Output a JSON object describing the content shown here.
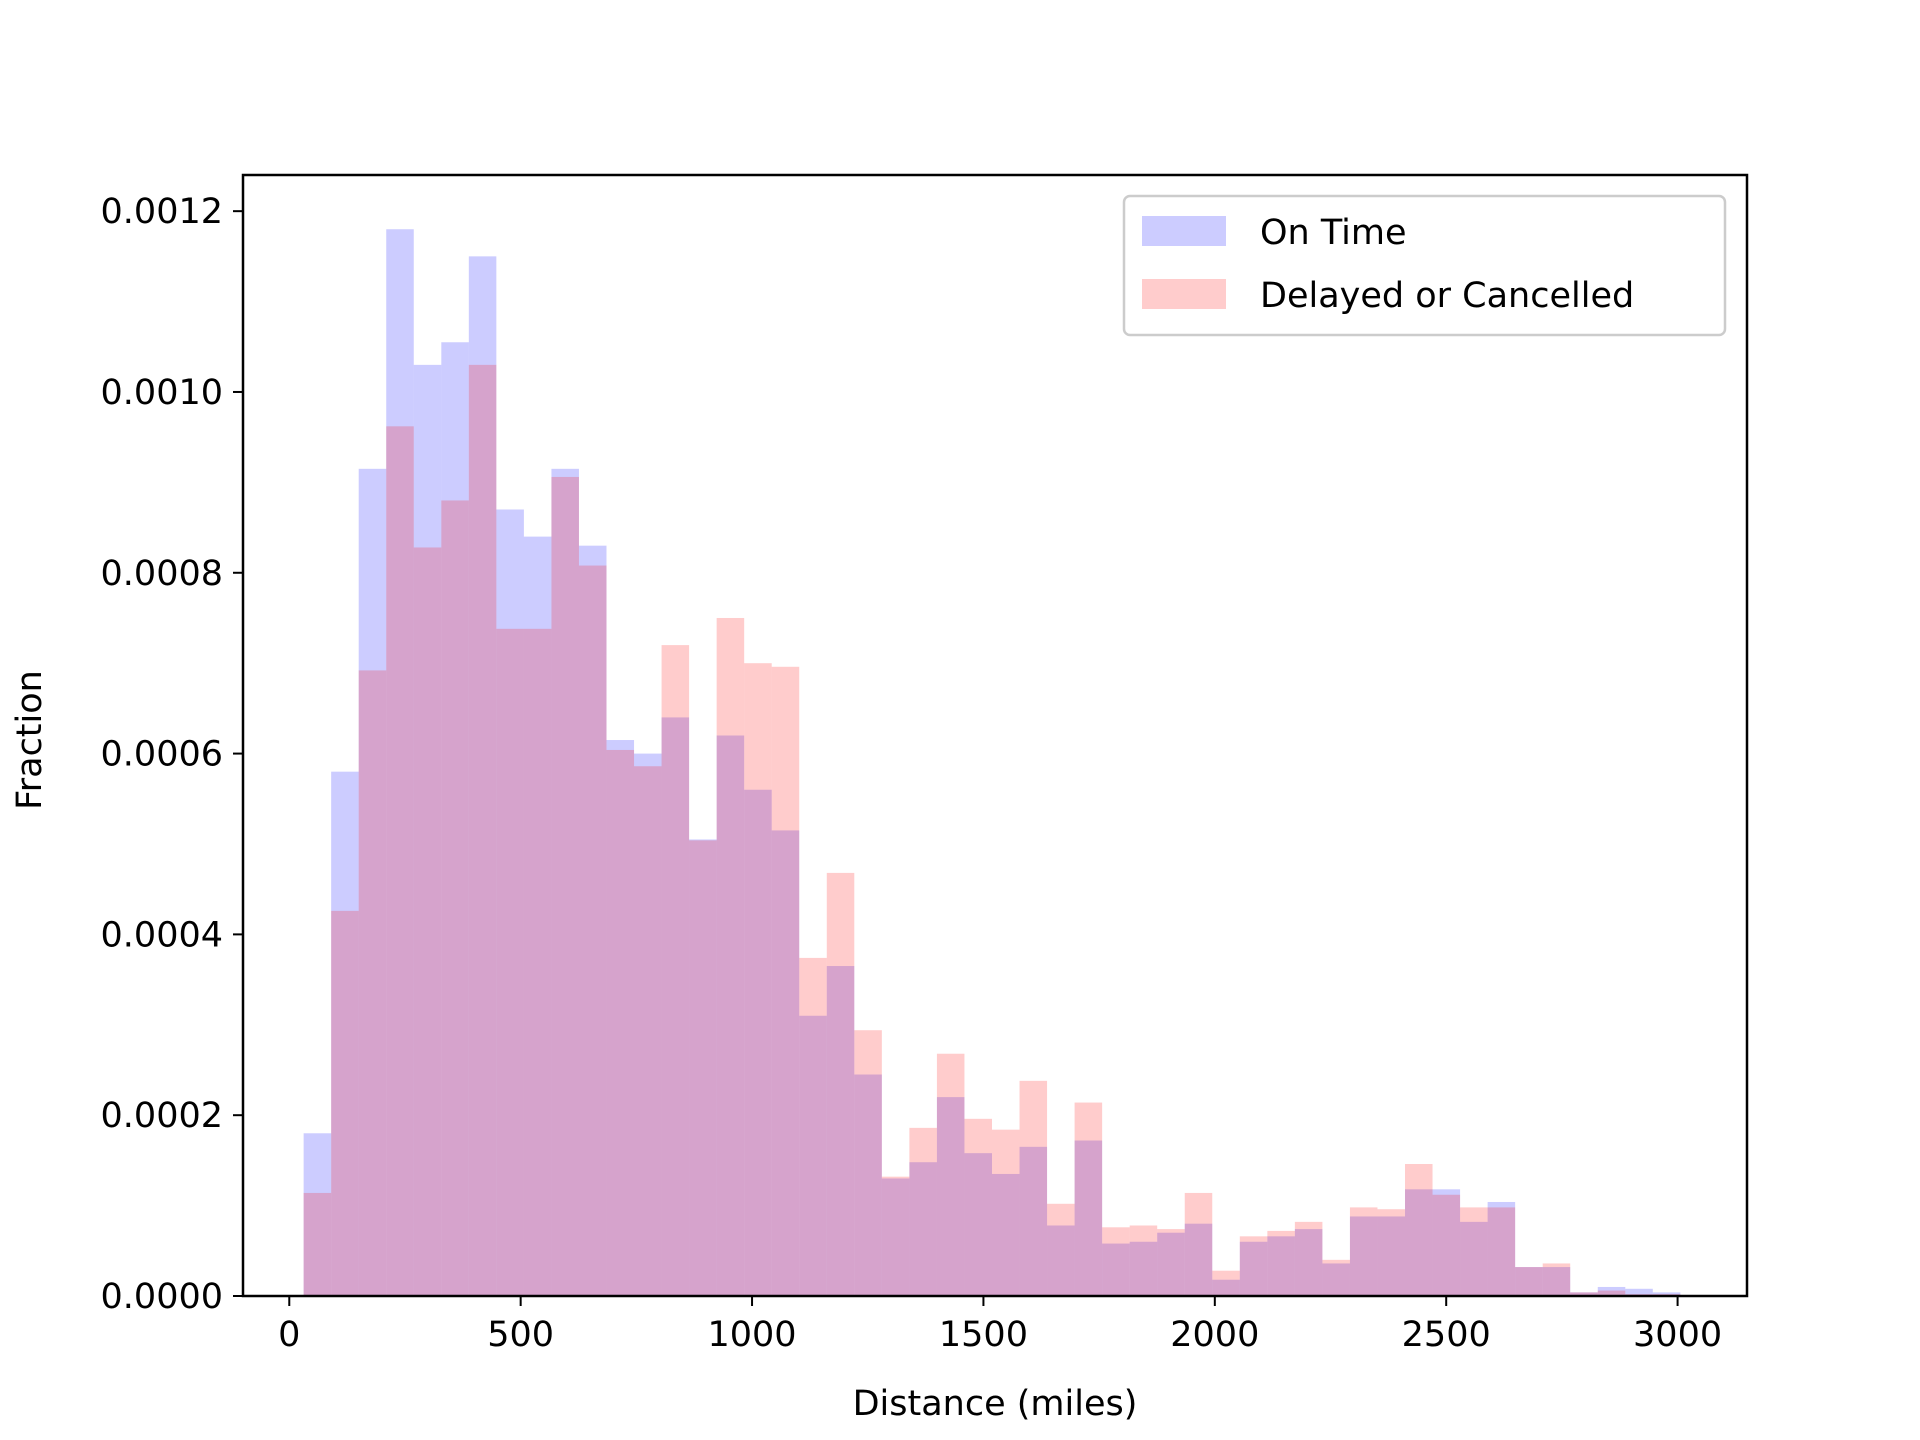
{
  "chart_data": {
    "type": "histogram",
    "xlabel": "Distance (miles)",
    "ylabel": "Fraction",
    "xlim": [
      -100,
      3150
    ],
    "ylim": [
      0,
      0.00124
    ],
    "xticks": [
      0,
      500,
      1000,
      1500,
      2000,
      2500,
      3000
    ],
    "xtick_labels": [
      "0",
      "500",
      "1000",
      "1500",
      "2000",
      "2500",
      "3000"
    ],
    "yticks": [
      0,
      0.0002,
      0.0004,
      0.0006,
      0.0008,
      0.001,
      0.0012
    ],
    "ytick_labels": [
      "0.0000",
      "0.0002",
      "0.0004",
      "0.0006",
      "0.0008",
      "0.0010",
      "0.0012"
    ],
    "bin_start": 31,
    "bin_width": 59.5,
    "grid": false,
    "legend_position": "top-right",
    "series": [
      {
        "name": "On Time",
        "color": "#0000ff",
        "alpha": 0.2,
        "values": [
          0.00018,
          0.00058,
          0.000915,
          0.00118,
          0.00103,
          0.001055,
          0.00115,
          0.00087,
          0.00084,
          0.000915,
          0.00083,
          0.000615,
          0.0006,
          0.00064,
          0.000505,
          0.00062,
          0.00056,
          0.000515,
          0.00031,
          0.000365,
          0.000245,
          0.00013,
          0.000148,
          0.00022,
          0.000158,
          0.000135,
          0.000165,
          7.8e-05,
          0.000172,
          5.8e-05,
          6e-05,
          7e-05,
          8e-05,
          1.8e-05,
          6e-05,
          6.6e-05,
          7.4e-05,
          3.6e-05,
          8.8e-05,
          8.8e-05,
          0.000118,
          0.000118,
          8.2e-05,
          0.000104,
          3.2e-05,
          3.2e-05,
          4e-06,
          1e-05,
          8e-06,
          4e-06
        ]
      },
      {
        "name": "Delayed or Cancelled",
        "color": "#ff0000",
        "alpha": 0.2,
        "values": [
          0.000114,
          0.000426,
          0.000692,
          0.000962,
          0.000828,
          0.00088,
          0.00103,
          0.000738,
          0.000738,
          0.000906,
          0.000808,
          0.000604,
          0.000586,
          0.00072,
          0.000504,
          0.00075,
          0.0007,
          0.000696,
          0.000374,
          0.000468,
          0.000294,
          0.000132,
          0.000186,
          0.000268,
          0.000196,
          0.000184,
          0.000238,
          0.000102,
          0.000214,
          7.6e-05,
          7.8e-05,
          7.4e-05,
          0.000114,
          2.8e-05,
          6.6e-05,
          7.2e-05,
          8.2e-05,
          4e-05,
          9.8e-05,
          9.6e-05,
          0.000146,
          0.000112,
          9.8e-05,
          9.8e-05,
          3.2e-05,
          3.6e-05,
          4e-06,
          6e-06,
          2e-06,
          2e-06
        ]
      }
    ]
  }
}
